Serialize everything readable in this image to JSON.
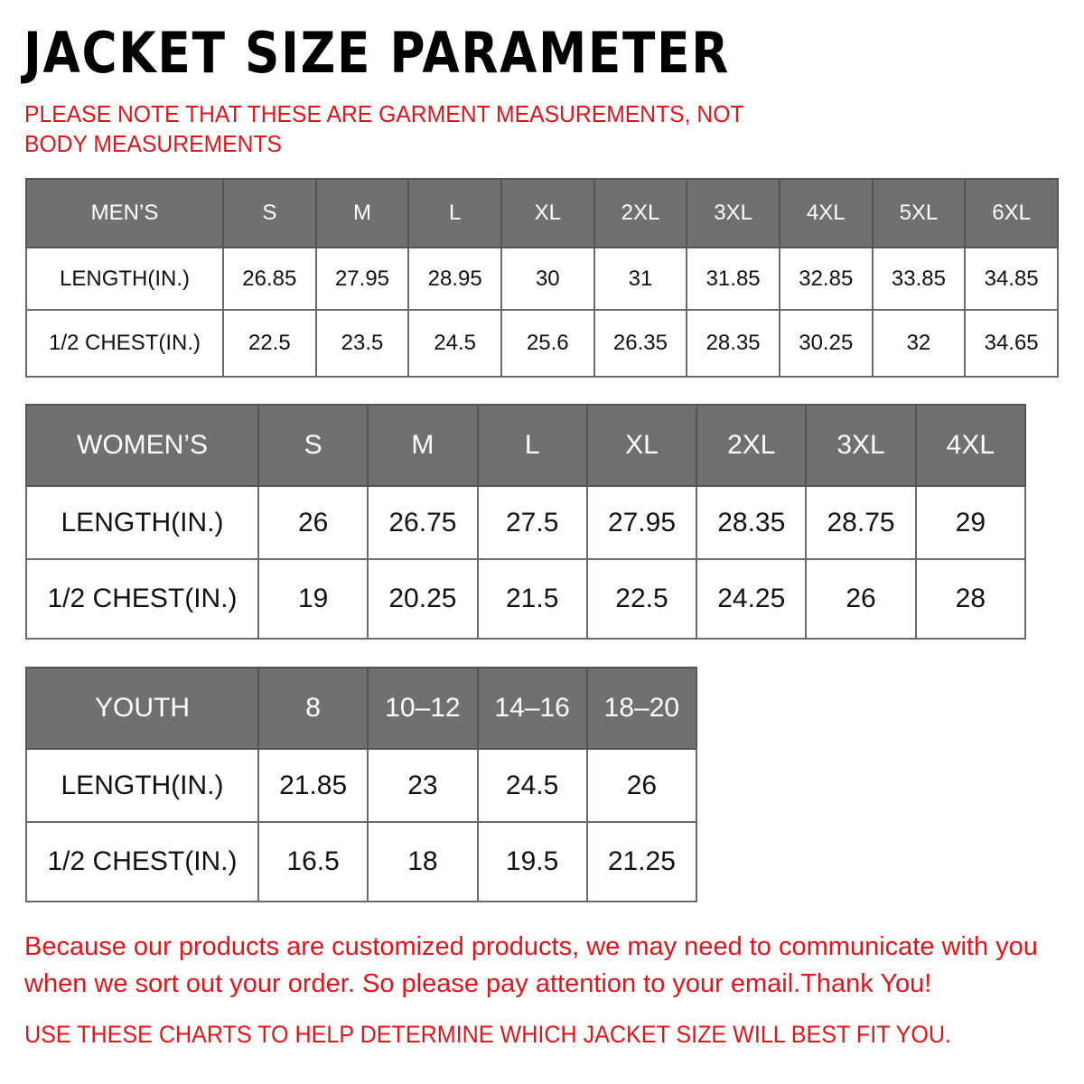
{
  "title": "JACKET SIZE PARAMETER",
  "note": "PLEASE NOTE THAT THESE ARE GARMENT MEASUREMENTS, NOT BODY MEASUREMENTS",
  "header_color": "#707070",
  "accent_color": "#e0141b",
  "tables": {
    "men": {
      "header": [
        "MEN’S",
        "S",
        "M",
        "L",
        "XL",
        "2XL",
        "3XL",
        "4XL",
        "5XL",
        "6XL"
      ],
      "rows": [
        [
          "LENGTH(IN.)",
          "26.85",
          "27.95",
          "28.95",
          "30",
          "31",
          "31.85",
          "32.85",
          "33.85",
          "34.85"
        ],
        [
          "1/2 CHEST(IN.)",
          "22.5",
          "23.5",
          "24.5",
          "25.6",
          "26.35",
          "28.35",
          "30.25",
          "32",
          "34.65"
        ]
      ]
    },
    "women": {
      "header": [
        "WOMEN’S",
        "S",
        "M",
        "L",
        "XL",
        "2XL",
        "3XL",
        "4XL"
      ],
      "rows": [
        [
          "LENGTH(IN.)",
          "26",
          "26.75",
          "27.5",
          "27.95",
          "28.35",
          "28.75",
          "29"
        ],
        [
          "1/2 CHEST(IN.)",
          "19",
          "20.25",
          "21.5",
          "22.5",
          "24.25",
          "26",
          "28"
        ]
      ]
    },
    "youth": {
      "header": [
        "YOUTH",
        "8",
        "10–12",
        "14–16",
        "18–20"
      ],
      "rows": [
        [
          "LENGTH(IN.)",
          "21.85",
          "23",
          "24.5",
          "26"
        ],
        [
          "1/2 CHEST(IN.)",
          "16.5",
          "18",
          "19.5",
          "21.25"
        ]
      ]
    }
  },
  "footer": {
    "message": "Because our products are customized products, we may need to communicate with you when we sort out your order. So please pay attention to your email.Thank You!",
    "instruction": "USE THESE CHARTS TO HELP DETERMINE WHICH JACKET SIZE WILL BEST FIT YOU."
  }
}
